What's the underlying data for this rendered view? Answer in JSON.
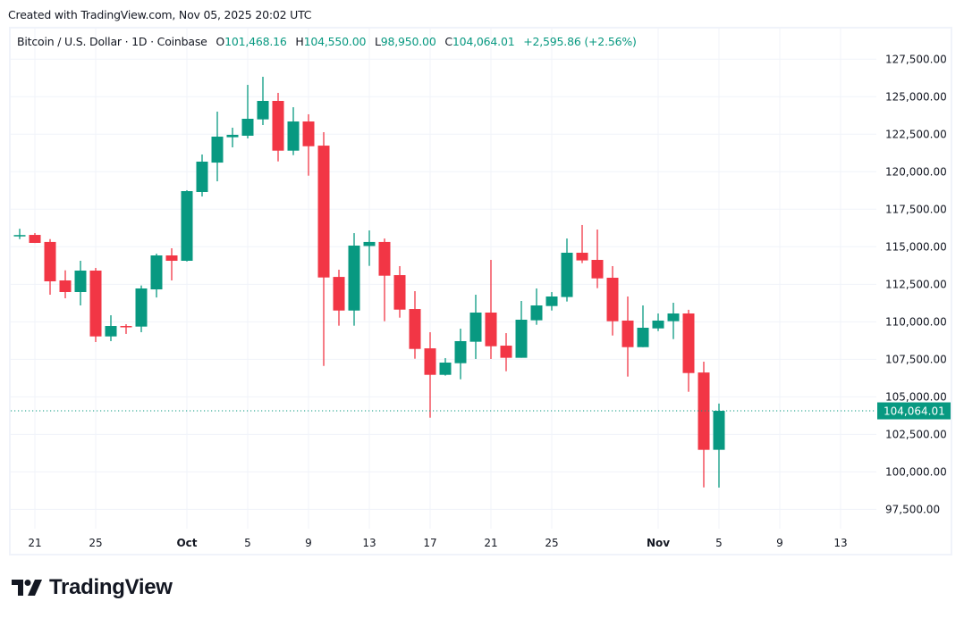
{
  "header": {
    "created": "Created with TradingView.com, Nov 05, 2025 20:02 UTC"
  },
  "legend": {
    "symbol": "Bitcoin / U.S. Dollar · 1D · Coinbase",
    "o_label": "O",
    "o": "101,468.16",
    "h_label": "H",
    "h": "104,550.00",
    "l_label": "L",
    "l": "98,950.00",
    "c_label": "C",
    "c": "104,064.01",
    "change": "+2,595.86 (+2.56%)"
  },
  "brand": {
    "name": "TradingView"
  },
  "colors": {
    "up": "#089981",
    "down": "#f23645",
    "grid": "#f0f3fa",
    "last_price": "#089981"
  },
  "chart_data": {
    "type": "candlestick",
    "title": "",
    "ylim": [
      96500,
      128500
    ],
    "grid": true,
    "last_price": 104064.01,
    "last_price_label": "104,064.01",
    "yticks": [
      {
        "value": 127500,
        "label": "127,500.00"
      },
      {
        "value": 125000,
        "label": "125,000.00"
      },
      {
        "value": 122500,
        "label": "122,500.00"
      },
      {
        "value": 120000,
        "label": "120,000.00"
      },
      {
        "value": 117500,
        "label": "117,500.00"
      },
      {
        "value": 115000,
        "label": "115,000.00"
      },
      {
        "value": 112500,
        "label": "112,500.00"
      },
      {
        "value": 110000,
        "label": "110,000.00"
      },
      {
        "value": 107500,
        "label": "107,500.00"
      },
      {
        "value": 105000,
        "label": "105,000.00"
      },
      {
        "value": 102500,
        "label": "102,500.00"
      },
      {
        "value": 100000,
        "label": "100,000.00"
      },
      {
        "value": 97500,
        "label": "97,500.00"
      }
    ],
    "xticks": [
      {
        "date": "2025-09-21",
        "label": "21"
      },
      {
        "date": "2025-09-25",
        "label": "25"
      },
      {
        "date": "2025-10-01",
        "label": "Oct",
        "bold": true
      },
      {
        "date": "2025-10-05",
        "label": "5"
      },
      {
        "date": "2025-10-09",
        "label": "9"
      },
      {
        "date": "2025-10-13",
        "label": "13"
      },
      {
        "date": "2025-10-17",
        "label": "17"
      },
      {
        "date": "2025-10-21",
        "label": "21"
      },
      {
        "date": "2025-10-25",
        "label": "25"
      },
      {
        "date": "2025-11-01",
        "label": "Nov",
        "bold": true
      },
      {
        "date": "2025-11-05",
        "label": "5"
      },
      {
        "date": "2025-11-09",
        "label": "9"
      },
      {
        "date": "2025-11-13",
        "label": "13"
      }
    ],
    "columns": [
      "date",
      "open",
      "high",
      "low",
      "close"
    ],
    "candles": [
      [
        "2025-09-20",
        115720,
        116200,
        115510,
        115780
      ],
      [
        "2025-09-21",
        115790,
        115910,
        115250,
        115257
      ],
      [
        "2025-09-22",
        115320,
        115510,
        111804,
        112697
      ],
      [
        "2025-09-23",
        112757,
        113430,
        111566,
        111983
      ],
      [
        "2025-09-24",
        111983,
        114066,
        111090,
        113412
      ],
      [
        "2025-09-25",
        113412,
        113590,
        108650,
        109025
      ],
      [
        "2025-09-26",
        109025,
        110436,
        108710,
        109720
      ],
      [
        "2025-09-27",
        109720,
        109840,
        109190,
        109680
      ],
      [
        "2025-09-28",
        109680,
        112420,
        109305,
        112221
      ],
      [
        "2025-09-29",
        112160,
        114540,
        111620,
        114423
      ],
      [
        "2025-09-30",
        114423,
        114900,
        112757,
        114066
      ],
      [
        "2025-10-01",
        114066,
        118770,
        114020,
        118709
      ],
      [
        "2025-10-02",
        118650,
        121150,
        118350,
        120673
      ],
      [
        "2025-10-03",
        120610,
        124006,
        119364,
        122340
      ],
      [
        "2025-10-04",
        122300,
        122935,
        121625,
        122460
      ],
      [
        "2025-10-05",
        122400,
        125790,
        122220,
        123530
      ],
      [
        "2025-10-06",
        123490,
        126330,
        123113,
        124720
      ],
      [
        "2025-10-07",
        124720,
        125256,
        120690,
        121405
      ],
      [
        "2025-10-08",
        121405,
        124300,
        121107,
        123350
      ],
      [
        "2025-10-09",
        123350,
        123830,
        119738,
        121700
      ],
      [
        "2025-10-10",
        121740,
        122640,
        107060,
        112953
      ],
      [
        "2025-10-11",
        112990,
        113470,
        109740,
        110750
      ],
      [
        "2025-10-12",
        110750,
        115910,
        109740,
        115078
      ],
      [
        "2025-10-13",
        115050,
        116090,
        113727,
        115320
      ],
      [
        "2025-10-14",
        115320,
        115550,
        110037,
        113072
      ],
      [
        "2025-10-15",
        113110,
        113710,
        110275,
        110810
      ],
      [
        "2025-10-16",
        110850,
        112043,
        107537,
        108191
      ],
      [
        "2025-10-17",
        108230,
        109305,
        103608,
        106465
      ],
      [
        "2025-10-18",
        106465,
        107580,
        106410,
        107280
      ],
      [
        "2025-10-19",
        107240,
        109543,
        106168,
        108710
      ],
      [
        "2025-10-20",
        108670,
        111805,
        107520,
        110614
      ],
      [
        "2025-10-21",
        110614,
        114125,
        107520,
        108370
      ],
      [
        "2025-10-22",
        108410,
        109245,
        106704,
        107600
      ],
      [
        "2025-10-23",
        107600,
        111388,
        107600,
        110138
      ],
      [
        "2025-10-24",
        110100,
        112220,
        109800,
        111090
      ],
      [
        "2025-10-25",
        111050,
        111980,
        110750,
        111685
      ],
      [
        "2025-10-26",
        111650,
        115550,
        111350,
        114602
      ],
      [
        "2025-10-27",
        114602,
        116450,
        113910,
        114090
      ],
      [
        "2025-10-28",
        114125,
        116150,
        112240,
        112893
      ],
      [
        "2025-10-29",
        112935,
        113710,
        109085,
        110037
      ],
      [
        "2025-10-30",
        110080,
        111685,
        106347,
        108310
      ],
      [
        "2025-10-31",
        108310,
        111090,
        108310,
        109603
      ],
      [
        "2025-11-01",
        109560,
        110554,
        109380,
        110080
      ],
      [
        "2025-11-02",
        110040,
        111268,
        108846,
        110554
      ],
      [
        "2025-11-03",
        110554,
        110800,
        105335,
        106584
      ],
      [
        "2025-11-04",
        106620,
        107340,
        98966,
        101467
      ],
      [
        "2025-11-05",
        101468.16,
        104550,
        98950,
        104064.01
      ]
    ]
  }
}
